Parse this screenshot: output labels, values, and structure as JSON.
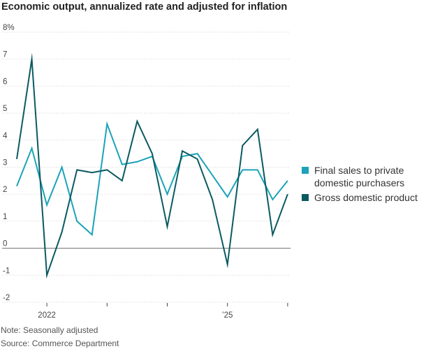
{
  "chart_data": {
    "type": "line",
    "title": "Economic output, annualized rate and adjusted for inflation",
    "ylim": [
      -2,
      8
    ],
    "y_ticks": [
      {
        "value": 8,
        "label": "8%"
      },
      {
        "value": 7,
        "label": "7"
      },
      {
        "value": 6,
        "label": "6"
      },
      {
        "value": 5,
        "label": "5"
      },
      {
        "value": 4,
        "label": "4"
      },
      {
        "value": 3,
        "label": "3"
      },
      {
        "value": 2,
        "label": "2"
      },
      {
        "value": 1,
        "label": "1"
      },
      {
        "value": 0,
        "label": "0"
      },
      {
        "value": -1,
        "label": "-1"
      },
      {
        "value": -2,
        "label": "-2"
      }
    ],
    "x": [
      "2021-Q3",
      "2021-Q4",
      "2022-Q1",
      "2022-Q2",
      "2022-Q3",
      "2022-Q4",
      "2023-Q1",
      "2023-Q2",
      "2023-Q3",
      "2023-Q4",
      "2024-Q1",
      "2024-Q2",
      "2024-Q3",
      "2024-Q4",
      "2025-Q1",
      "2025-Q2",
      "2025-Q3",
      "2025-Q4",
      "2026-Q1"
    ],
    "x_ticks": [
      {
        "x": "2022-Q1",
        "label": "2022"
      },
      {
        "x": "2023-Q1",
        "label": ""
      },
      {
        "x": "2024-Q1",
        "label": ""
      },
      {
        "x": "2025-Q1",
        "label": "’25"
      },
      {
        "x": "2026-Q1",
        "label": ""
      }
    ],
    "series": [
      {
        "name": "Final sales to private domestic purchasers",
        "legend_lines": [
          "Final sales to private",
          "domestic purchasers"
        ],
        "color": "#1ba3b8",
        "values": [
          2.3,
          3.7,
          1.6,
          3.0,
          1.0,
          0.5,
          4.6,
          3.1,
          3.2,
          3.4,
          2.0,
          3.4,
          3.5,
          2.7,
          1.9,
          2.9,
          2.9,
          1.8,
          2.5
        ]
      },
      {
        "name": "Gross domestic product",
        "legend_lines": [
          "Gross domestic product"
        ],
        "color": "#0a5a60",
        "values": [
          3.3,
          7.0,
          -1.0,
          0.6,
          2.9,
          2.8,
          2.9,
          2.5,
          4.7,
          3.5,
          0.8,
          3.6,
          3.3,
          1.8,
          -0.6,
          3.8,
          4.4,
          0.5,
          2.0
        ]
      }
    ],
    "gridlines": true,
    "legend_position": "right"
  },
  "footnotes": {
    "note": "Note: Seasonally adjusted",
    "source": "Source: Commerce Department"
  }
}
